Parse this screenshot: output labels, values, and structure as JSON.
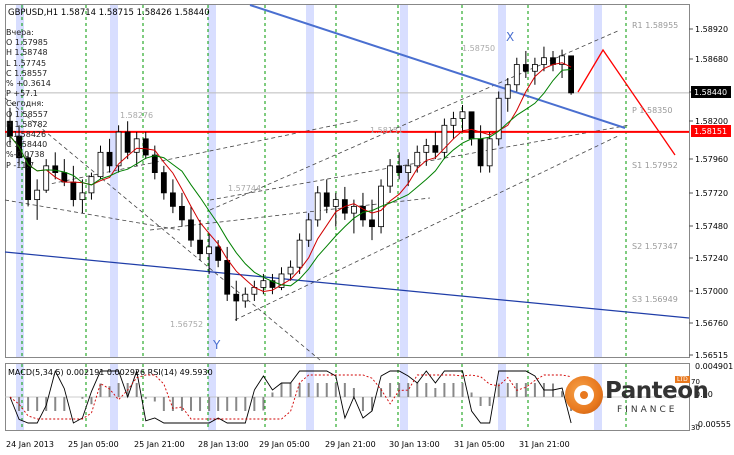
{
  "chart_data": {
    "type": "candlestick",
    "symbol_line": "GBPUSD,H1  1.58714 1.58715 1.58426 1.58440",
    "price_axis": {
      "ticks": [
        "1.58920",
        "1.58680",
        "1.58440",
        "1.58200",
        "1.57960",
        "1.57720",
        "1.57480",
        "1.57240",
        "1.57000",
        "1.56760",
        "1.56515"
      ],
      "current_price": "1.58440",
      "red_level": "1.58151"
    },
    "time_axis": {
      "ticks": [
        "24 Jan 2013",
        "25 Jan 05:00",
        "25 Jan 21:00",
        "28 Jan 13:00",
        "29 Jan 05:00",
        "29 Jan 21:00",
        "30 Jan 13:00",
        "31 Jan 05:00",
        "31 Jan 21:00"
      ]
    },
    "ohlc_panel": {
      "yesterday_label": "Вчера:",
      "yesterday": [
        "O 1.57985",
        "H 1.58748",
        "L 1.57745",
        "C 1.58557",
        "% +0.3614",
        "P +57.1"
      ],
      "today_label": "Сегодня:",
      "today": [
        "O 1.58557",
        "H 1.58782",
        "L 1.58426",
        "C 1.58440",
        "%-0.0738",
        "P -11.7"
      ]
    },
    "pivot_labels": [
      {
        "name": "R1",
        "value": "1.58955"
      },
      {
        "name": "P",
        "value": "1.58350"
      },
      {
        "name": "S1",
        "value": "1.57952"
      },
      {
        "name": "S2",
        "value": "1.57347"
      },
      {
        "name": "S3",
        "value": "1.56949"
      }
    ],
    "chart_price_labels": [
      "1.58276",
      "1.58151",
      "1.57744",
      "1.56752",
      "1.58750"
    ],
    "wave_labels": [
      "X",
      "Y"
    ],
    "indicator": {
      "label": "MACD(5,34,5) 0.002191 0.002926  RSI(14) 49.5930",
      "ticks": [
        "0.004901",
        "0.00",
        "-0.00555"
      ],
      "rsi_levels": [
        "70",
        "30"
      ]
    },
    "brand": {
      "name": "Panteon",
      "sub": "FINANCE",
      "badge": "LTD"
    },
    "colors": {
      "bull_ma": "#d00000",
      "bear_ma": "#008000",
      "trend": "#4a6fd0",
      "red_level": "#ff0000",
      "grid": "#009900",
      "session": "#c8d0ff"
    }
  }
}
